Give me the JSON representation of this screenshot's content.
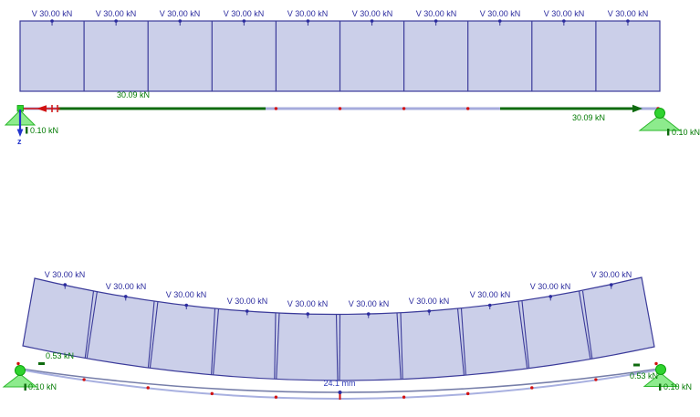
{
  "top_view": {
    "load_labels": [
      "V 30.00 kN",
      "V 30.00 kN",
      "V 30.00 kN",
      "V 30.00 kN",
      "V 30.00 kN",
      "V 30.00 kN",
      "V 30.00 kN",
      "V 30.00 kN",
      "V 30.00 kN",
      "V 30.00 kN"
    ],
    "axial_force_label_left": "30.09 kN",
    "axial_force_label_right": "30.09 kN",
    "support_reaction_left": "0.10 kN",
    "support_reaction_right": "0.10 kN",
    "axis_label": "z"
  },
  "bottom_view": {
    "load_labels": [
      "V 30.00 kN",
      "V 30.00 kN",
      "V 30.00 kN",
      "V 30.00 kN",
      "V 30.00 kN",
      "V 30.00 kN",
      "V 30.00 kN",
      "V 30.00 kN",
      "V 30.00 kN",
      "V 30.00 kN"
    ],
    "max_deflection_label": "24.1 mm",
    "shear_label_left": "0.53 kN",
    "shear_label_right": "0.53 kN",
    "support_reaction_left": "0.10 kN",
    "support_reaction_right": "0.10 kN"
  },
  "colors": {
    "load_area_fill": "#cbcfe9",
    "model_navy": "#3b3b9a",
    "label_navy": "#2b2b9e",
    "beam_lavender": "#a6abdc",
    "diagram_green": "#0f6b0f",
    "result_green_text": "#007a00",
    "support_green": "#2fd32f",
    "support_green_dark": "#0ea10e",
    "support_triangle_fill": "#8deb8d",
    "support_triangle_stroke": "#2db82d",
    "node_red": "#d11111",
    "axis_blue": "#2233cc",
    "deflection_blue": "#3340b8",
    "deformed_member": "#767ea9",
    "deformation_line": "#a8b0e0"
  }
}
